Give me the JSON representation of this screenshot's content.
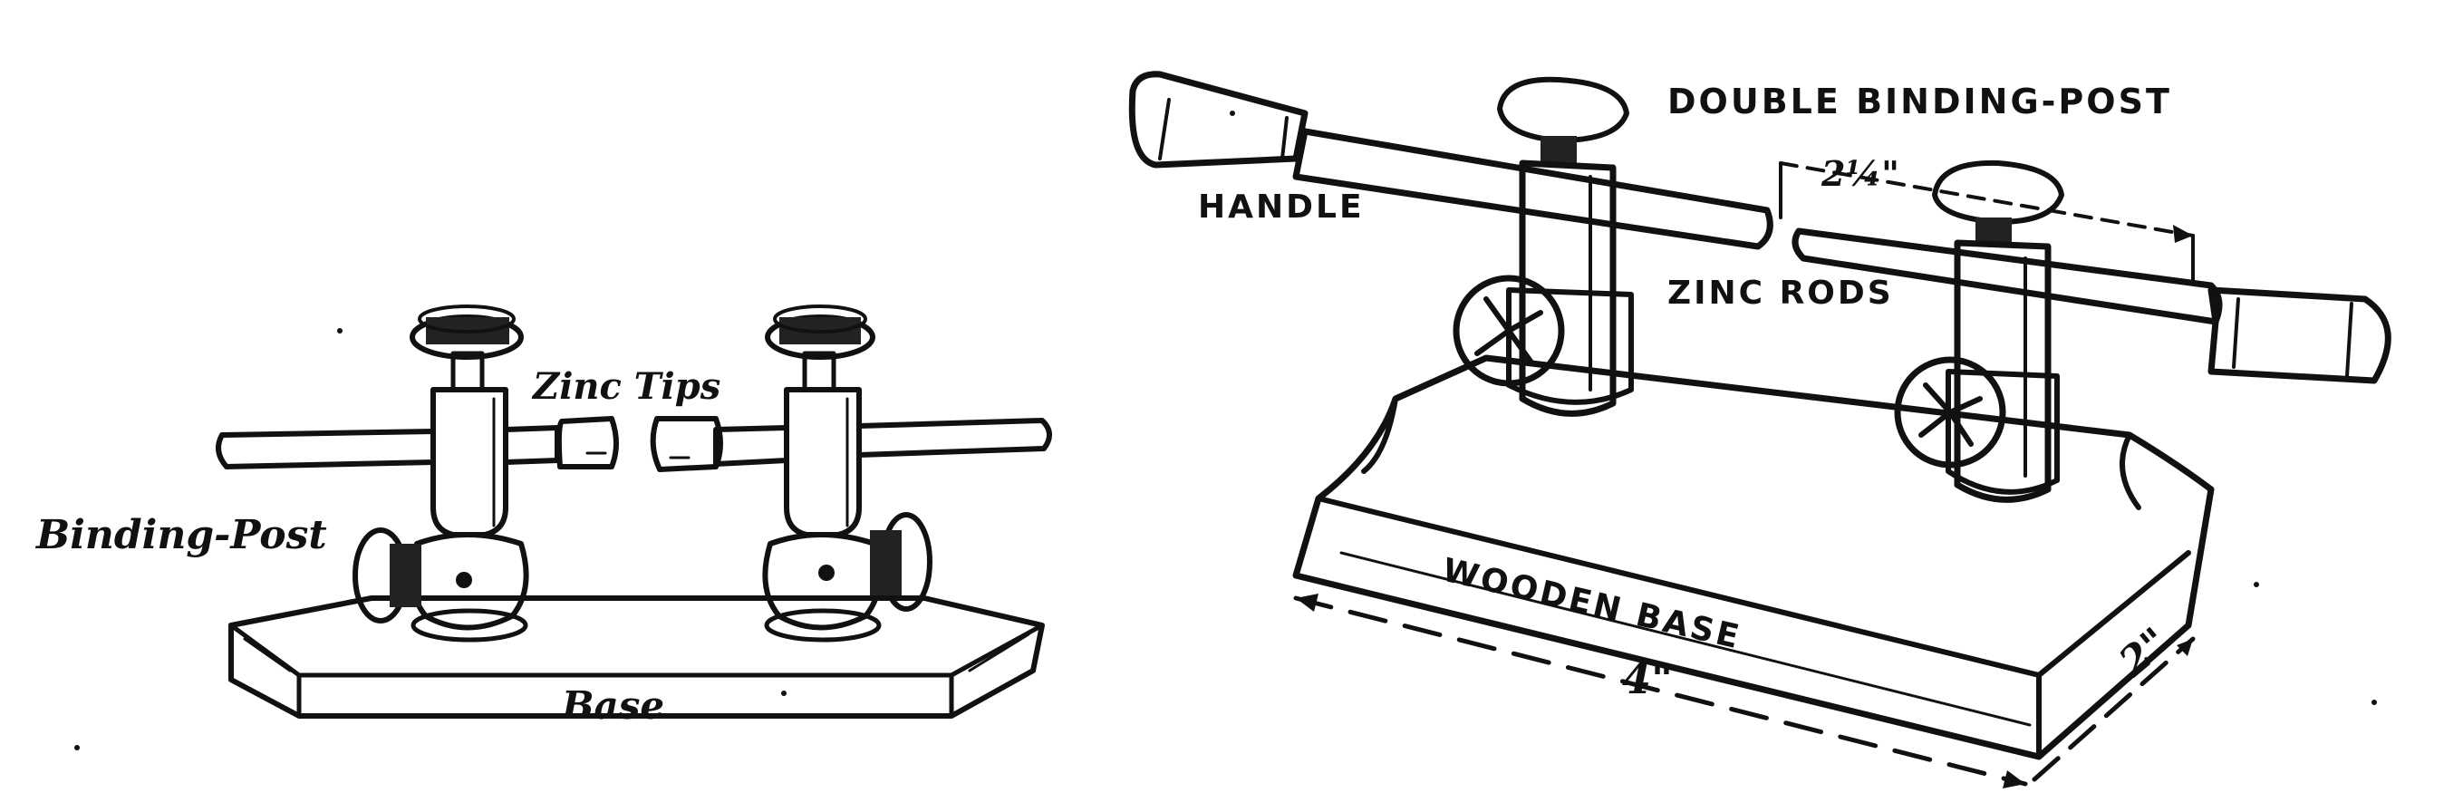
{
  "figures": [
    {
      "labels": {
        "binding_post": "Binding-Post",
        "zinc_tips": "Zinc Tips",
        "base": "Base"
      }
    },
    {
      "labels": {
        "double_binding_post": "DOUBLE BINDING-POST",
        "handle": "HANDLE",
        "gap": "2¼\"",
        "zinc_rods": "ZINC RODS",
        "wooden_base": "WOODEN BASE",
        "length": "4\"",
        "width": "2\""
      }
    }
  ]
}
